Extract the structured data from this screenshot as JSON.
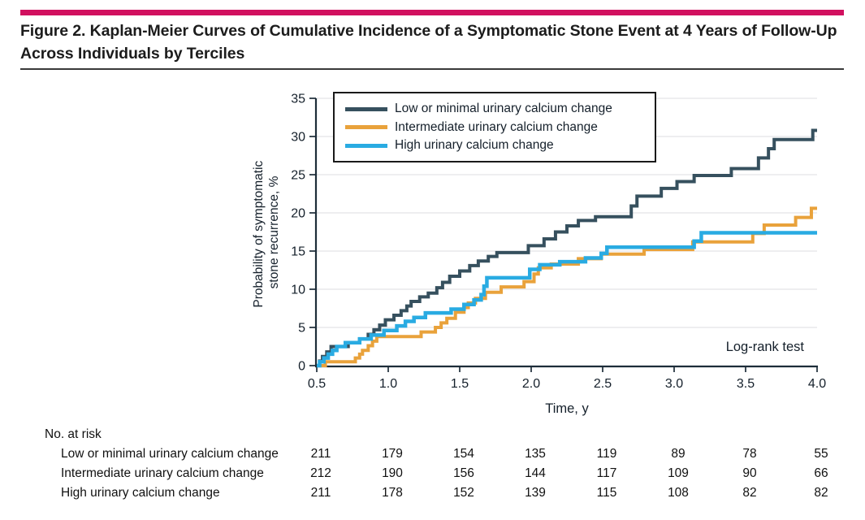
{
  "figure": {
    "title": "Figure 2. Kaplan-Meier Curves of Cumulative Incidence of a Symptomatic Stone Event at 4 Years of Follow-Up Across Individuals by Terciles",
    "accent_bar_color": "#D1105F"
  },
  "chart_data": {
    "type": "line",
    "subtype": "kaplan-meier-step",
    "xlabel": "Time, y",
    "ylabel_lines": [
      "Probability of symptomatic",
      "stone recurrence, %"
    ],
    "xlim": [
      0.5,
      4.0
    ],
    "ylim": [
      0,
      35
    ],
    "x_ticks": [
      0.5,
      1.0,
      1.5,
      2.0,
      2.5,
      3.0,
      3.5,
      4.0
    ],
    "x_tick_labels": [
      "0.5",
      "1.0",
      "1.5",
      "2.0",
      "2.5",
      "3.0",
      "3.5",
      "4.0"
    ],
    "y_ticks": [
      0,
      5,
      10,
      15,
      20,
      25,
      30,
      35
    ],
    "grid": "horizontal",
    "legend_position": "top-left-inside",
    "annotation": "Log-rank test",
    "series": [
      {
        "name": "Low or minimal urinary calcium change",
        "color": "#36505E",
        "stroke_width": 4,
        "points": [
          [
            0.5,
            0
          ],
          [
            0.52,
            0.6
          ],
          [
            0.54,
            1.2
          ],
          [
            0.57,
            1.8
          ],
          [
            0.6,
            2.5
          ],
          [
            0.72,
            3.0
          ],
          [
            0.8,
            3.5
          ],
          [
            0.86,
            4.1
          ],
          [
            0.9,
            4.7
          ],
          [
            0.94,
            5.3
          ],
          [
            0.98,
            6.0
          ],
          [
            1.04,
            6.6
          ],
          [
            1.09,
            7.2
          ],
          [
            1.13,
            7.8
          ],
          [
            1.16,
            8.4
          ],
          [
            1.22,
            9.0
          ],
          [
            1.28,
            9.5
          ],
          [
            1.34,
            10.2
          ],
          [
            1.38,
            10.9
          ],
          [
            1.43,
            11.7
          ],
          [
            1.5,
            12.4
          ],
          [
            1.57,
            13.1
          ],
          [
            1.63,
            13.7
          ],
          [
            1.7,
            14.3
          ],
          [
            1.76,
            14.8
          ],
          [
            1.98,
            15.7
          ],
          [
            2.09,
            16.6
          ],
          [
            2.17,
            17.5
          ],
          [
            2.25,
            18.3
          ],
          [
            2.33,
            19.0
          ],
          [
            2.45,
            19.5
          ],
          [
            2.7,
            20.9
          ],
          [
            2.74,
            22.2
          ],
          [
            2.91,
            23.2
          ],
          [
            3.02,
            24.1
          ],
          [
            3.14,
            24.9
          ],
          [
            3.4,
            25.8
          ],
          [
            3.59,
            27.2
          ],
          [
            3.66,
            28.4
          ],
          [
            3.7,
            29.6
          ],
          [
            3.97,
            30.8
          ],
          [
            4.0,
            30.8
          ]
        ]
      },
      {
        "name": "Intermediate urinary calcium change",
        "color": "#E9A23B",
        "stroke_width": 4,
        "points": [
          [
            0.5,
            0
          ],
          [
            0.56,
            0.5
          ],
          [
            0.77,
            1.0
          ],
          [
            0.8,
            1.5
          ],
          [
            0.82,
            2.0
          ],
          [
            0.86,
            2.6
          ],
          [
            0.89,
            3.2
          ],
          [
            0.92,
            3.8
          ],
          [
            1.23,
            4.4
          ],
          [
            1.33,
            5.0
          ],
          [
            1.37,
            5.6
          ],
          [
            1.41,
            6.2
          ],
          [
            1.47,
            7.0
          ],
          [
            1.53,
            7.6
          ],
          [
            1.56,
            8.2
          ],
          [
            1.61,
            8.8
          ],
          [
            1.68,
            9.6
          ],
          [
            1.79,
            10.3
          ],
          [
            1.95,
            11.0
          ],
          [
            2.02,
            12.0
          ],
          [
            2.05,
            12.8
          ],
          [
            2.14,
            13.3
          ],
          [
            2.33,
            14.0
          ],
          [
            2.49,
            14.6
          ],
          [
            2.79,
            15.2
          ],
          [
            3.13,
            16.2
          ],
          [
            3.55,
            17.3
          ],
          [
            3.63,
            18.4
          ],
          [
            3.85,
            19.4
          ],
          [
            3.96,
            20.6
          ],
          [
            4.0,
            20.6
          ]
        ]
      },
      {
        "name": "High urinary calcium change",
        "color": "#29ABE2",
        "stroke_width": 4.5,
        "points": [
          [
            0.5,
            0
          ],
          [
            0.52,
            0.5
          ],
          [
            0.55,
            1.0
          ],
          [
            0.58,
            1.5
          ],
          [
            0.61,
            2.0
          ],
          [
            0.64,
            2.5
          ],
          [
            0.7,
            3.0
          ],
          [
            0.8,
            3.5
          ],
          [
            0.88,
            4.0
          ],
          [
            0.97,
            4.6
          ],
          [
            1.06,
            5.2
          ],
          [
            1.12,
            5.8
          ],
          [
            1.18,
            6.3
          ],
          [
            1.26,
            6.9
          ],
          [
            1.44,
            7.4
          ],
          [
            1.53,
            8.0
          ],
          [
            1.6,
            8.6
          ],
          [
            1.65,
            9.3
          ],
          [
            1.67,
            10.4
          ],
          [
            1.69,
            11.5
          ],
          [
            1.99,
            12.6
          ],
          [
            2.06,
            13.2
          ],
          [
            2.2,
            13.6
          ],
          [
            2.38,
            14.1
          ],
          [
            2.49,
            14.7
          ],
          [
            2.53,
            15.5
          ],
          [
            3.14,
            16.3
          ],
          [
            3.19,
            17.4
          ],
          [
            4.0,
            17.4
          ]
        ]
      }
    ]
  },
  "risk_table": {
    "header": "No. at risk",
    "rows": [
      {
        "label": "Low or minimal urinary calcium change",
        "counts": [
          211,
          179,
          154,
          135,
          119,
          89,
          78,
          55
        ]
      },
      {
        "label": "Intermediate urinary calcium change",
        "counts": [
          212,
          190,
          156,
          144,
          117,
          109,
          90,
          66
        ]
      },
      {
        "label": "High urinary calcium change",
        "counts": [
          211,
          178,
          152,
          139,
          115,
          108,
          82,
          82
        ]
      }
    ]
  }
}
